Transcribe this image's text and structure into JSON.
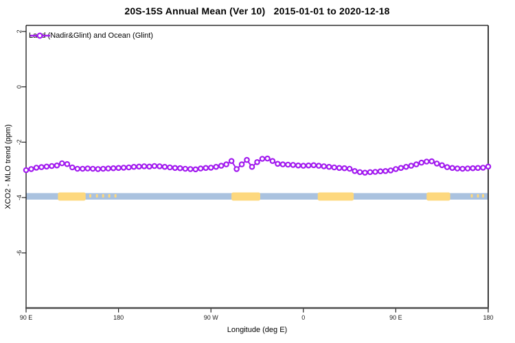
{
  "chart_data": {
    "type": "line",
    "title": "20S-15S Annual Mean (Ver 10)   2015-01-01 to 2020-12-18",
    "xlabel": "Longitude (deg E)",
    "ylabel": "XCO2 - MLO trend (ppm)",
    "xlim": [
      90,
      540
    ],
    "ylim": [
      -7.99,
      2.22
    ],
    "grid": false,
    "legend_position": "top-left-inside",
    "x_ticks": [
      {
        "lon": 90,
        "label": "90 E"
      },
      {
        "lon": 180,
        "label": "180"
      },
      {
        "lon": 270,
        "label": "90 W"
      },
      {
        "lon": 360,
        "label": "0"
      },
      {
        "lon": 450,
        "label": "90 E"
      },
      {
        "lon": 540,
        "label": "180"
      }
    ],
    "y_ticks": [
      {
        "v": 2,
        "label": "2"
      },
      {
        "v": 0,
        "label": "0"
      },
      {
        "v": -2,
        "label": "-2"
      },
      {
        "v": -4,
        "label": "-4"
      },
      {
        "v": -6,
        "label": "-6"
      }
    ],
    "series": [
      {
        "name": "Land (Nadir&Glint) and Ocean (Glint)",
        "color": "#A21AEF",
        "marker": "open-circle",
        "x": [
          90,
          95,
          100,
          105,
          110,
          115,
          120,
          125,
          130,
          135,
          140,
          145,
          150,
          155,
          160,
          165,
          170,
          175,
          180,
          185,
          190,
          195,
          200,
          205,
          210,
          215,
          220,
          225,
          230,
          235,
          240,
          245,
          250,
          255,
          260,
          265,
          270,
          275,
          280,
          285,
          290,
          295,
          300,
          305,
          310,
          315,
          320,
          325,
          330,
          335,
          340,
          345,
          350,
          355,
          360,
          365,
          370,
          375,
          380,
          385,
          390,
          395,
          400,
          405,
          410,
          415,
          420,
          425,
          430,
          435,
          440,
          445,
          450,
          455,
          460,
          465,
          470,
          475,
          480,
          485,
          490,
          495,
          500,
          505,
          510,
          515,
          520,
          525,
          530,
          535,
          540
        ],
        "y": [
          -3.01,
          -2.97,
          -2.92,
          -2.9,
          -2.88,
          -2.86,
          -2.84,
          -2.76,
          -2.79,
          -2.91,
          -2.96,
          -2.96,
          -2.95,
          -2.96,
          -2.97,
          -2.96,
          -2.95,
          -2.94,
          -2.93,
          -2.92,
          -2.91,
          -2.89,
          -2.88,
          -2.87,
          -2.88,
          -2.86,
          -2.87,
          -2.89,
          -2.91,
          -2.93,
          -2.94,
          -2.96,
          -2.97,
          -2.98,
          -2.95,
          -2.93,
          -2.92,
          -2.89,
          -2.85,
          -2.8,
          -2.68,
          -2.97,
          -2.8,
          -2.64,
          -2.89,
          -2.72,
          -2.6,
          -2.59,
          -2.68,
          -2.78,
          -2.8,
          -2.81,
          -2.82,
          -2.84,
          -2.85,
          -2.84,
          -2.83,
          -2.85,
          -2.87,
          -2.89,
          -2.91,
          -2.93,
          -2.94,
          -2.96,
          -3.04,
          -3.08,
          -3.1,
          -3.08,
          -3.07,
          -3.05,
          -3.04,
          -3.02,
          -2.97,
          -2.93,
          -2.89,
          -2.85,
          -2.8,
          -2.74,
          -2.7,
          -2.69,
          -2.77,
          -2.83,
          -2.9,
          -2.93,
          -2.95,
          -2.96,
          -2.95,
          -2.94,
          -2.93,
          -2.92,
          -2.88
        ]
      }
    ],
    "land_ocean_band": {
      "description": "land/ocean strip drawn across plot",
      "band_center_value": -3.95,
      "ocean_color": "#AAC2DF",
      "land_color": "#FDD87E",
      "ocean_range": [
        90,
        540
      ],
      "land_segments": [
        [
          121,
          148
        ],
        [
          290,
          318
        ],
        [
          374,
          409
        ],
        [
          480,
          503
        ]
      ],
      "island_specks": [
        [
          151.5,
          153.5
        ],
        [
          158,
          160
        ],
        [
          164,
          166
        ],
        [
          170,
          172
        ],
        [
          176,
          178
        ],
        [
          523,
          525
        ],
        [
          529,
          531
        ],
        [
          534,
          536
        ]
      ]
    }
  }
}
